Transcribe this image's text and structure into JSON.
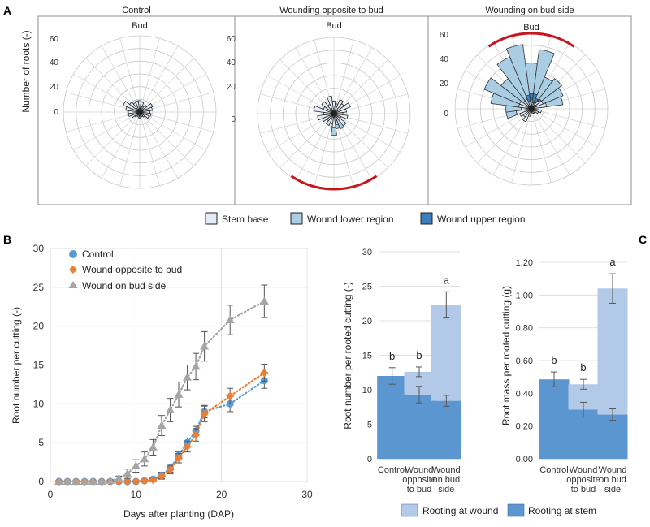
{
  "panel_labels": {
    "a": "A",
    "b": "B",
    "c": "C"
  },
  "colors": {
    "stem_base": "#e3ecf6",
    "wound_lower": "#a9cde3",
    "wound_upper": "#3c7fbd",
    "bud_arc": "#c8161d",
    "control": "#5b9bd5",
    "opposite": "#ed7d31",
    "budside": "#a5a5a5",
    "stem_bar": "#5b96d0",
    "wound_bar": "#b3c9e8"
  },
  "chart_data": [
    {
      "type": "polar_bar",
      "panel": "A",
      "ylabel": "Number of roots (-)",
      "radial_ticks": [
        0,
        20,
        40,
        60
      ],
      "rmax": 60,
      "bud_label": "Bud",
      "panels": [
        {
          "title": "Control",
          "show_arc": false,
          "stem_base": [
            9,
            8,
            5,
            7,
            11,
            10,
            8,
            9,
            8,
            5,
            4,
            4,
            5,
            4,
            3,
            5,
            7,
            9,
            9,
            11,
            14,
            10,
            8,
            9
          ],
          "wound_lower": [
            0,
            0,
            0,
            0,
            0,
            0,
            0,
            0,
            0,
            0,
            0,
            0,
            0,
            0,
            0,
            0,
            0,
            0,
            0,
            0,
            0,
            0,
            0,
            0
          ],
          "wound_upper": [
            0,
            0,
            0,
            0,
            0,
            0,
            0,
            0,
            0,
            0,
            0,
            0,
            0,
            0,
            0,
            0,
            0,
            0,
            0,
            0,
            0,
            0,
            0,
            0
          ]
        },
        {
          "title": "Wounding opposite to bud",
          "show_arc": true,
          "arc_center_deg": 180,
          "stem_base": [
            10,
            8,
            12,
            10,
            14,
            10,
            7,
            11,
            6,
            12,
            5,
            9,
            11,
            8,
            10,
            7,
            10,
            13,
            8,
            16,
            9,
            12,
            8,
            14
          ],
          "wound_lower": [
            0,
            0,
            0,
            0,
            0,
            0,
            0,
            0,
            0,
            0,
            8,
            3,
            6,
            0,
            0,
            0,
            0,
            0,
            0,
            0,
            0,
            0,
            0,
            0
          ],
          "wound_upper": [
            0,
            0,
            0,
            0,
            0,
            0,
            0,
            0,
            0,
            0,
            0,
            0,
            0,
            0,
            0,
            0,
            0,
            0,
            0,
            0,
            0,
            0,
            0,
            0
          ]
        },
        {
          "title": "Wounding on bud side",
          "show_arc": true,
          "arc_center_deg": 0,
          "stem_base": [
            7,
            5,
            5,
            8,
            10,
            12,
            6,
            8,
            6,
            4,
            4,
            4,
            4,
            6,
            11,
            8,
            10,
            12,
            8,
            10,
            10,
            8,
            8,
            6
          ],
          "wound_lower": [
            24,
            35,
            18,
            20,
            17,
            13,
            0,
            0,
            0,
            0,
            0,
            0,
            0,
            0,
            0,
            0,
            0,
            8,
            12,
            22,
            30,
            22,
            36,
            40
          ],
          "wound_upper": [
            5,
            7,
            4,
            2,
            0,
            0,
            0,
            0,
            0,
            0,
            0,
            0,
            0,
            0,
            0,
            0,
            0,
            0,
            0,
            0,
            0,
            0,
            0,
            5
          ]
        }
      ],
      "legend": [
        "Stem base",
        "Wound lower region",
        "Wound upper region"
      ]
    },
    {
      "type": "scatter",
      "panel": "B",
      "xlabel": "Days after planting (DAP)",
      "ylabel": "Root number per cutting (-)",
      "xlim": [
        0,
        30
      ],
      "ylim": [
        0,
        30
      ],
      "xticks": [
        0,
        10,
        20,
        30
      ],
      "yticks": [
        0,
        5,
        10,
        15,
        20,
        25,
        30
      ],
      "grid": true,
      "legend_position": "top-left",
      "series": [
        {
          "name": "Control",
          "marker": "circle",
          "x": [
            1,
            2,
            3,
            4,
            5,
            6,
            7,
            8,
            9,
            10,
            11,
            12,
            13,
            14,
            15,
            16,
            17,
            18,
            21,
            25
          ],
          "y": [
            0,
            0,
            0,
            0,
            0,
            0,
            0,
            0,
            0,
            0,
            0.1,
            0.3,
            0.8,
            1.7,
            3.3,
            5.0,
            6.5,
            9.0,
            10.0,
            13.0
          ],
          "err": [
            0,
            0,
            0,
            0,
            0,
            0,
            0,
            0,
            0,
            0,
            0.1,
            0.2,
            0.4,
            0.5,
            0.5,
            0.6,
            0.6,
            0.8,
            1.0,
            1.0
          ]
        },
        {
          "name": "Wound opposite to bud",
          "marker": "diamond",
          "x": [
            1,
            2,
            3,
            4,
            5,
            6,
            7,
            8,
            9,
            10,
            11,
            12,
            13,
            14,
            15,
            16,
            17,
            18,
            21,
            25
          ],
          "y": [
            0,
            0,
            0,
            0,
            0,
            0,
            0,
            0,
            0,
            0,
            0.1,
            0.2,
            0.7,
            1.5,
            3.0,
            4.5,
            6.0,
            8.7,
            11.0,
            14.0
          ],
          "err": [
            0,
            0,
            0,
            0,
            0,
            0,
            0,
            0,
            0,
            0,
            0.1,
            0.2,
            0.4,
            0.5,
            0.6,
            0.7,
            0.8,
            1.0,
            1.0,
            1.1
          ]
        },
        {
          "name": "Wound on bud side",
          "marker": "triangle",
          "x": [
            1,
            2,
            3,
            4,
            5,
            6,
            7,
            8,
            9,
            10,
            11,
            12,
            13,
            14,
            15,
            16,
            17,
            18,
            21,
            25
          ],
          "y": [
            0,
            0,
            0,
            0,
            0,
            0,
            0.1,
            0.4,
            1.0,
            2.0,
            2.9,
            4.4,
            7.2,
            9.2,
            11.2,
            13.4,
            14.8,
            17.4,
            20.8,
            23.2
          ],
          "err": [
            0,
            0,
            0,
            0,
            0,
            0,
            0.1,
            0.3,
            0.6,
            0.8,
            0.9,
            1.0,
            1.3,
            1.5,
            1.6,
            1.6,
            1.7,
            1.9,
            1.9,
            2.1
          ]
        }
      ]
    },
    {
      "type": "bar",
      "panel": "B-right",
      "stacked": true,
      "ylabel": "Root number per rooted cutting (-)",
      "categories": [
        "Control",
        "Wound opposite to bud",
        "Wound on bud side"
      ],
      "category_lines": [
        [
          "Control"
        ],
        [
          "Wound",
          "opposite",
          "to bud"
        ],
        [
          "Wound",
          "on bud",
          "side"
        ]
      ],
      "ylim": [
        0,
        30
      ],
      "yticks": [
        "0",
        "5",
        "10",
        "15",
        "20",
        "25",
        "30"
      ],
      "series": [
        {
          "name": "Rooting at stem",
          "values": [
            12.0,
            9.3,
            8.4
          ],
          "err": [
            1.2,
            1.2,
            0.8
          ]
        },
        {
          "name": "Rooting at wound",
          "values": [
            0,
            3.3,
            13.9
          ],
          "err": [
            0,
            0.7,
            1.9
          ]
        }
      ],
      "letters": [
        "b",
        "b",
        "a"
      ]
    },
    {
      "type": "bar",
      "panel": "C",
      "stacked": true,
      "ylabel": "Root mass per rooted cutting (g)",
      "categories": [
        "Control",
        "Wound opposite to bud",
        "Wound on bud side"
      ],
      "category_lines": [
        [
          "Control"
        ],
        [
          "Wound",
          "opposite",
          "to bud"
        ],
        [
          "Wound",
          "on bud",
          "side"
        ]
      ],
      "ylim": [
        0,
        1.2
      ],
      "yticks": [
        "0.00",
        "0.20",
        "0.40",
        "0.60",
        "0.80",
        "1.00",
        "1.20"
      ],
      "series": [
        {
          "name": "Rooting at stem",
          "values": [
            0.485,
            0.3,
            0.27
          ],
          "err": [
            0.045,
            0.045,
            0.035
          ]
        },
        {
          "name": "Rooting at wound",
          "values": [
            0,
            0.155,
            0.77
          ],
          "err": [
            0,
            0.03,
            0.09
          ]
        }
      ],
      "letters": [
        "b",
        "b",
        "a"
      ]
    }
  ],
  "bottom_legend": [
    "Rooting at wound",
    "Rooting at stem"
  ]
}
